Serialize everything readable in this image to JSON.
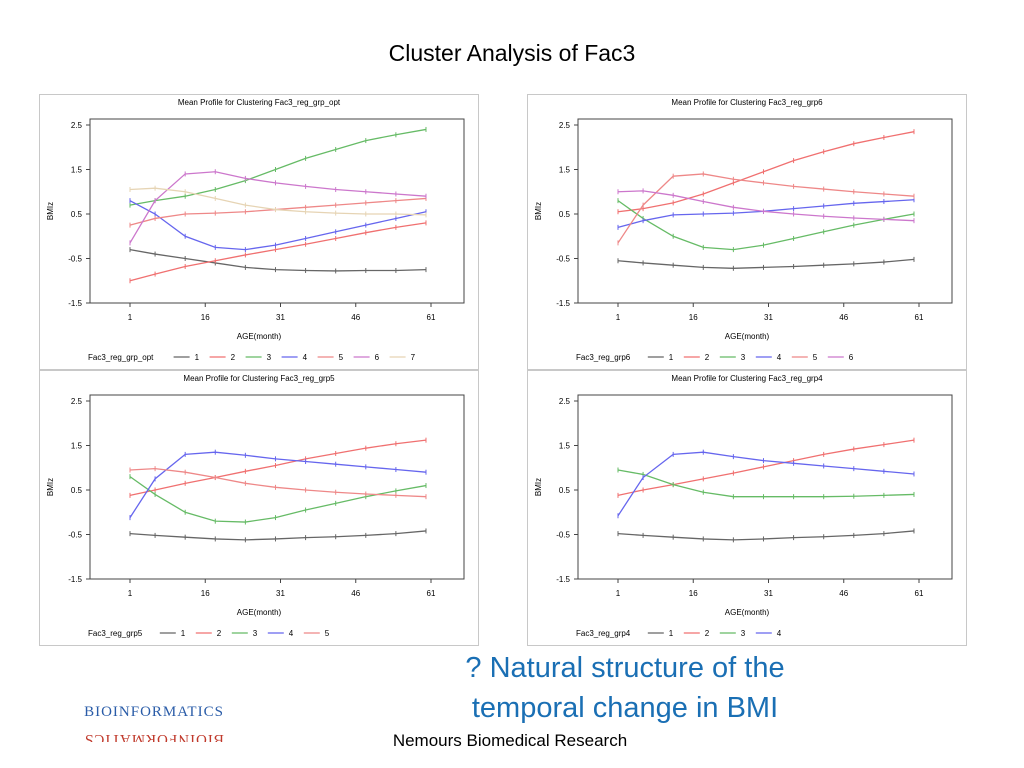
{
  "slide": {
    "title": "Cluster Analysis of Fac3",
    "callout_line1": "? Natural structure of the",
    "callout_line2": "temporal change in BMI",
    "footer": "Nemours Biomedical Research",
    "logo_top": "BIOINFORMATICS",
    "logo_bottom": "BIOINFORMATICS"
  },
  "colors": {
    "1": "#666666",
    "2": "#f07070",
    "3": "#66bb66",
    "4": "#6666ee",
    "5": "#ee8888",
    "6": "#cc77cc",
    "7": "#e6d4b4"
  },
  "chart_data": [
    {
      "type": "line",
      "title": "Mean Profile for Clustering Fac3_reg_grp_opt",
      "xlabel": "AGE(month)",
      "ylabel": "BMIz",
      "xticks": [
        1,
        16,
        31,
        46,
        61
      ],
      "yticks": [
        2.5,
        1.5,
        0.5,
        -0.5,
        -1.5
      ],
      "xlim": [
        1,
        61
      ],
      "ylim": [
        -1.5,
        2.5
      ],
      "legend_title": "Fac3_reg_grp_opt",
      "legend_position": "bottom",
      "x": [
        1,
        6,
        12,
        18,
        24,
        30,
        36,
        42,
        48,
        54,
        60
      ],
      "series": [
        {
          "name": "1",
          "color": "#666666",
          "values": [
            -0.3,
            -0.4,
            -0.5,
            -0.6,
            -0.7,
            -0.75,
            -0.77,
            -0.78,
            -0.77,
            -0.77,
            -0.75
          ]
        },
        {
          "name": "2",
          "color": "#f07070",
          "values": [
            -1.0,
            -0.85,
            -0.68,
            -0.55,
            -0.42,
            -0.3,
            -0.18,
            -0.05,
            0.08,
            0.2,
            0.3
          ]
        },
        {
          "name": "3",
          "color": "#66bb66",
          "values": [
            0.7,
            0.8,
            0.9,
            1.05,
            1.25,
            1.5,
            1.75,
            1.95,
            2.15,
            2.28,
            2.4
          ]
        },
        {
          "name": "4",
          "color": "#6666ee",
          "values": [
            0.8,
            0.5,
            0.0,
            -0.25,
            -0.3,
            -0.2,
            -0.05,
            0.1,
            0.25,
            0.4,
            0.55
          ]
        },
        {
          "name": "5",
          "color": "#ee8888",
          "values": [
            0.25,
            0.4,
            0.5,
            0.52,
            0.55,
            0.6,
            0.65,
            0.7,
            0.75,
            0.8,
            0.85
          ]
        },
        {
          "name": "6",
          "color": "#cc77cc",
          "values": [
            -0.15,
            0.8,
            1.4,
            1.45,
            1.3,
            1.2,
            1.12,
            1.05,
            1.0,
            0.95,
            0.9
          ]
        },
        {
          "name": "7",
          "color": "#e6d4b4",
          "values": [
            1.05,
            1.08,
            1.0,
            0.85,
            0.7,
            0.6,
            0.55,
            0.52,
            0.5,
            0.5,
            0.48
          ]
        }
      ]
    },
    {
      "type": "line",
      "title": "Mean Profile for Clustering Fac3_reg_grp6",
      "xlabel": "AGE(month)",
      "ylabel": "BMIz",
      "xticks": [
        1,
        16,
        31,
        46,
        61
      ],
      "yticks": [
        2.5,
        1.5,
        0.5,
        -0.5,
        -1.5
      ],
      "xlim": [
        1,
        61
      ],
      "ylim": [
        -1.5,
        2.5
      ],
      "legend_title": "Fac3_reg_grp6",
      "legend_position": "bottom",
      "x": [
        1,
        6,
        12,
        18,
        24,
        30,
        36,
        42,
        48,
        54,
        60
      ],
      "series": [
        {
          "name": "1",
          "color": "#666666",
          "values": [
            -0.55,
            -0.6,
            -0.65,
            -0.7,
            -0.72,
            -0.7,
            -0.68,
            -0.65,
            -0.62,
            -0.58,
            -0.52
          ]
        },
        {
          "name": "2",
          "color": "#f07070",
          "values": [
            0.55,
            0.62,
            0.75,
            0.95,
            1.2,
            1.45,
            1.7,
            1.9,
            2.08,
            2.22,
            2.35
          ]
        },
        {
          "name": "3",
          "color": "#66bb66",
          "values": [
            0.8,
            0.4,
            0.0,
            -0.25,
            -0.3,
            -0.2,
            -0.05,
            0.1,
            0.25,
            0.38,
            0.5
          ]
        },
        {
          "name": "4",
          "color": "#6666ee",
          "values": [
            0.2,
            0.35,
            0.48,
            0.5,
            0.52,
            0.56,
            0.62,
            0.68,
            0.74,
            0.78,
            0.82
          ]
        },
        {
          "name": "5",
          "color": "#ee8888",
          "values": [
            -0.15,
            0.7,
            1.35,
            1.4,
            1.28,
            1.2,
            1.12,
            1.06,
            1.0,
            0.95,
            0.9
          ]
        },
        {
          "name": "6",
          "color": "#cc77cc",
          "values": [
            1.0,
            1.02,
            0.92,
            0.78,
            0.65,
            0.56,
            0.5,
            0.45,
            0.41,
            0.38,
            0.35
          ]
        }
      ]
    },
    {
      "type": "line",
      "title": "Mean Profile for Clustering Fac3_reg_grp5",
      "xlabel": "AGE(month)",
      "ylabel": "BMIz",
      "xticks": [
        1,
        16,
        31,
        46,
        61
      ],
      "yticks": [
        2.5,
        1.5,
        0.5,
        -0.5,
        -1.5
      ],
      "xlim": [
        1,
        61
      ],
      "ylim": [
        -1.5,
        2.5
      ],
      "legend_title": "Fac3_reg_grp5",
      "legend_position": "bottom",
      "x": [
        1,
        6,
        12,
        18,
        24,
        30,
        36,
        42,
        48,
        54,
        60
      ],
      "series": [
        {
          "name": "1",
          "color": "#666666",
          "values": [
            -0.48,
            -0.52,
            -0.56,
            -0.6,
            -0.62,
            -0.6,
            -0.57,
            -0.55,
            -0.52,
            -0.48,
            -0.42
          ]
        },
        {
          "name": "2",
          "color": "#f07070",
          "values": [
            0.38,
            0.5,
            0.65,
            0.78,
            0.92,
            1.05,
            1.2,
            1.32,
            1.44,
            1.54,
            1.62
          ]
        },
        {
          "name": "3",
          "color": "#66bb66",
          "values": [
            0.8,
            0.4,
            0.0,
            -0.2,
            -0.22,
            -0.12,
            0.05,
            0.2,
            0.35,
            0.48,
            0.6
          ]
        },
        {
          "name": "4",
          "color": "#6666ee",
          "values": [
            -0.12,
            0.75,
            1.3,
            1.35,
            1.28,
            1.2,
            1.14,
            1.08,
            1.02,
            0.96,
            0.9
          ]
        },
        {
          "name": "5",
          "color": "#ee8888",
          "values": [
            0.95,
            0.98,
            0.9,
            0.78,
            0.65,
            0.56,
            0.5,
            0.45,
            0.41,
            0.38,
            0.35
          ]
        }
      ]
    },
    {
      "type": "line",
      "title": "Mean Profile for Clustering Fac3_reg_grp4",
      "xlabel": "AGE(month)",
      "ylabel": "BMIz",
      "xticks": [
        1,
        16,
        31,
        46,
        61
      ],
      "yticks": [
        2.5,
        1.5,
        0.5,
        -0.5,
        -1.5
      ],
      "xlim": [
        1,
        61
      ],
      "ylim": [
        -1.5,
        2.5
      ],
      "legend_title": "Fac3_reg_grp4",
      "legend_position": "bottom",
      "x": [
        1,
        6,
        12,
        18,
        24,
        30,
        36,
        42,
        48,
        54,
        60
      ],
      "series": [
        {
          "name": "1",
          "color": "#666666",
          "values": [
            -0.48,
            -0.52,
            -0.56,
            -0.6,
            -0.62,
            -0.6,
            -0.57,
            -0.55,
            -0.52,
            -0.48,
            -0.42
          ]
        },
        {
          "name": "2",
          "color": "#f07070",
          "values": [
            0.38,
            0.5,
            0.62,
            0.75,
            0.88,
            1.02,
            1.16,
            1.3,
            1.42,
            1.52,
            1.62
          ]
        },
        {
          "name": "3",
          "color": "#66bb66",
          "values": [
            0.95,
            0.85,
            0.62,
            0.45,
            0.35,
            0.35,
            0.35,
            0.35,
            0.36,
            0.38,
            0.4
          ]
        },
        {
          "name": "4",
          "color": "#6666ee",
          "values": [
            -0.08,
            0.78,
            1.3,
            1.35,
            1.25,
            1.16,
            1.1,
            1.04,
            0.98,
            0.92,
            0.86
          ]
        }
      ]
    }
  ]
}
